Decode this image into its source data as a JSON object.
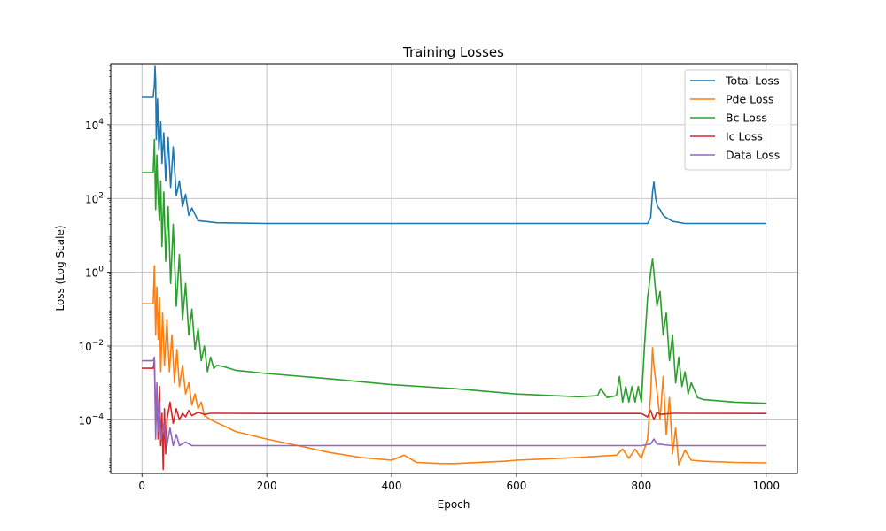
{
  "chart_data": {
    "type": "line",
    "title": "Training Losses",
    "xlabel": "Epoch",
    "ylabel": "Loss (Log Scale)",
    "xlim": [
      -50,
      1050
    ],
    "ylim": [
      3.5e-06,
      450000
    ],
    "yscale": "log",
    "grid": true,
    "legend_position": "top-right",
    "x_ticks": [
      0,
      200,
      400,
      600,
      800,
      1000
    ],
    "y_ticks": [
      {
        "value": 0.0001,
        "base": "10",
        "exp": "−4"
      },
      {
        "value": 0.01,
        "base": "10",
        "exp": "−2"
      },
      {
        "value": 1,
        "base": "10",
        "exp": "0"
      },
      {
        "value": 100,
        "base": "10",
        "exp": "2"
      },
      {
        "value": 10000,
        "base": "10",
        "exp": "4"
      }
    ],
    "series": [
      {
        "name": "Total Loss",
        "color": "#1f77b4",
        "points": [
          [
            0,
            55000
          ],
          [
            18,
            55000
          ],
          [
            20,
            120000
          ],
          [
            21,
            380000
          ],
          [
            22,
            150000
          ],
          [
            23,
            4000
          ],
          [
            25,
            50000
          ],
          [
            27,
            2000
          ],
          [
            30,
            12000
          ],
          [
            32,
            900
          ],
          [
            35,
            6000
          ],
          [
            38,
            300
          ],
          [
            42,
            4500
          ],
          [
            46,
            200
          ],
          [
            50,
            2500
          ],
          [
            55,
            120
          ],
          [
            60,
            300
          ],
          [
            65,
            60
          ],
          [
            70,
            130
          ],
          [
            75,
            35
          ],
          [
            80,
            55
          ],
          [
            90,
            25
          ],
          [
            100,
            24
          ],
          [
            120,
            22
          ],
          [
            200,
            21
          ],
          [
            400,
            21
          ],
          [
            600,
            21
          ],
          [
            800,
            21
          ],
          [
            810,
            21
          ],
          [
            815,
            30
          ],
          [
            818,
            150
          ],
          [
            820,
            280
          ],
          [
            823,
            100
          ],
          [
            826,
            60
          ],
          [
            830,
            50
          ],
          [
            835,
            35
          ],
          [
            840,
            30
          ],
          [
            850,
            24
          ],
          [
            870,
            21
          ],
          [
            1000,
            21
          ]
        ]
      },
      {
        "name": "Pde Loss",
        "color": "#ff7f0e",
        "points": [
          [
            0,
            0.14
          ],
          [
            18,
            0.14
          ],
          [
            20,
            1.5
          ],
          [
            22,
            0.02
          ],
          [
            24,
            0.4
          ],
          [
            26,
            0.015
          ],
          [
            28,
            0.2
          ],
          [
            30,
            0.002
          ],
          [
            33,
            0.08
          ],
          [
            36,
            0.003
          ],
          [
            40,
            0.05
          ],
          [
            44,
            0.002
          ],
          [
            48,
            0.02
          ],
          [
            52,
            0.001
          ],
          [
            56,
            0.008
          ],
          [
            60,
            0.0008
          ],
          [
            65,
            0.003
          ],
          [
            70,
            0.0005
          ],
          [
            75,
            0.001
          ],
          [
            80,
            0.00025
          ],
          [
            85,
            0.0005
          ],
          [
            90,
            0.0002
          ],
          [
            95,
            0.0003
          ],
          [
            100,
            0.00013
          ],
          [
            110,
            0.0001
          ],
          [
            130,
            7e-05
          ],
          [
            150,
            4.8e-05
          ],
          [
            200,
            3e-05
          ],
          [
            250,
            2e-05
          ],
          [
            300,
            1.3e-05
          ],
          [
            350,
            9.5e-06
          ],
          [
            400,
            8e-06
          ],
          [
            420,
            1.1e-05
          ],
          [
            440,
            7e-06
          ],
          [
            480,
            6.5e-06
          ],
          [
            500,
            6.5e-06
          ],
          [
            580,
            7.5e-06
          ],
          [
            600,
            8e-06
          ],
          [
            700,
            9.5e-06
          ],
          [
            760,
            1.1e-05
          ],
          [
            770,
            1.6e-05
          ],
          [
            780,
            9e-06
          ],
          [
            790,
            1.6e-05
          ],
          [
            800,
            9e-06
          ],
          [
            810,
            3e-05
          ],
          [
            815,
            0.0005
          ],
          [
            818,
            0.009
          ],
          [
            820,
            0.003
          ],
          [
            825,
            0.0006
          ],
          [
            830,
            0.0001
          ],
          [
            835,
            0.0015
          ],
          [
            840,
            4e-05
          ],
          [
            845,
            0.0004
          ],
          [
            850,
            1.2e-05
          ],
          [
            855,
            6e-05
          ],
          [
            860,
            6e-06
          ],
          [
            870,
            1.5e-05
          ],
          [
            880,
            8e-06
          ],
          [
            900,
            7.5e-06
          ],
          [
            950,
            7e-06
          ],
          [
            1000,
            6.8e-06
          ]
        ]
      },
      {
        "name": "Bc Loss",
        "color": "#2ca02c",
        "points": [
          [
            0,
            500
          ],
          [
            18,
            500
          ],
          [
            20,
            4000
          ],
          [
            22,
            50
          ],
          [
            24,
            1500
          ],
          [
            26,
            100
          ],
          [
            28,
            25
          ],
          [
            30,
            300
          ],
          [
            32,
            5
          ],
          [
            35,
            150
          ],
          [
            38,
            2
          ],
          [
            42,
            60
          ],
          [
            46,
            0.5
          ],
          [
            50,
            20
          ],
          [
            55,
            0.12
          ],
          [
            60,
            3
          ],
          [
            65,
            0.05
          ],
          [
            70,
            0.5
          ],
          [
            75,
            0.02
          ],
          [
            80,
            0.1
          ],
          [
            85,
            0.008
          ],
          [
            90,
            0.03
          ],
          [
            95,
            0.004
          ],
          [
            100,
            0.01
          ],
          [
            105,
            0.002
          ],
          [
            110,
            0.005
          ],
          [
            115,
            0.0025
          ],
          [
            120,
            0.003
          ],
          [
            130,
            0.0028
          ],
          [
            150,
            0.0022
          ],
          [
            200,
            0.0018
          ],
          [
            300,
            0.0013
          ],
          [
            400,
            0.0009
          ],
          [
            500,
            0.0007
          ],
          [
            600,
            0.0005
          ],
          [
            700,
            0.00042
          ],
          [
            730,
            0.00045
          ],
          [
            735,
            0.0007
          ],
          [
            745,
            0.0004
          ],
          [
            760,
            0.00045
          ],
          [
            765,
            0.0015
          ],
          [
            770,
            0.0003
          ],
          [
            775,
            0.0008
          ],
          [
            780,
            0.0003
          ],
          [
            785,
            0.0008
          ],
          [
            790,
            0.0003
          ],
          [
            795,
            0.0008
          ],
          [
            800,
            0.0003
          ],
          [
            805,
            0.01
          ],
          [
            810,
            0.2
          ],
          [
            815,
            1.0
          ],
          [
            818,
            2.3
          ],
          [
            820,
            1.0
          ],
          [
            825,
            0.12
          ],
          [
            830,
            0.3
          ],
          [
            835,
            0.02
          ],
          [
            840,
            0.08
          ],
          [
            845,
            0.004
          ],
          [
            850,
            0.02
          ],
          [
            855,
            0.001
          ],
          [
            860,
            0.005
          ],
          [
            865,
            0.0008
          ],
          [
            870,
            0.002
          ],
          [
            875,
            0.0005
          ],
          [
            880,
            0.001
          ],
          [
            890,
            0.0004
          ],
          [
            900,
            0.00035
          ],
          [
            950,
            0.0003
          ],
          [
            1000,
            0.00028
          ]
        ]
      },
      {
        "name": "Ic Loss",
        "color": "#d62728",
        "points": [
          [
            0,
            0.0025
          ],
          [
            18,
            0.0025
          ],
          [
            20,
            0.004
          ],
          [
            22,
            0.0001
          ],
          [
            24,
            0.0005
          ],
          [
            26,
            3e-05
          ],
          [
            28,
            0.0008
          ],
          [
            30,
            2e-05
          ],
          [
            32,
            0.00015
          ],
          [
            34,
            4.5e-06
          ],
          [
            36,
            0.0002
          ],
          [
            38,
            1.2e-05
          ],
          [
            40,
            0.0001
          ],
          [
            45,
            0.0003
          ],
          [
            50,
            8e-05
          ],
          [
            55,
            0.0002
          ],
          [
            60,
            0.0001
          ],
          [
            65,
            0.00015
          ],
          [
            70,
            0.00012
          ],
          [
            75,
            0.00018
          ],
          [
            80,
            0.00013
          ],
          [
            90,
            0.00016
          ],
          [
            100,
            0.00014
          ],
          [
            110,
            0.00015
          ],
          [
            130,
            0.00015
          ],
          [
            200,
            0.000148
          ],
          [
            400,
            0.000148
          ],
          [
            600,
            0.000148
          ],
          [
            800,
            0.000148
          ],
          [
            810,
            0.00012
          ],
          [
            815,
            0.00018
          ],
          [
            820,
            0.0001
          ],
          [
            825,
            0.00016
          ],
          [
            830,
            0.00014
          ],
          [
            850,
            0.00015
          ],
          [
            1000,
            0.000148
          ]
        ]
      },
      {
        "name": "Data Loss",
        "color": "#9467bd",
        "points": [
          [
            0,
            0.004
          ],
          [
            18,
            0.004
          ],
          [
            20,
            0.005
          ],
          [
            22,
            3e-05
          ],
          [
            24,
            0.001
          ],
          [
            26,
            5e-05
          ],
          [
            28,
            0.0003
          ],
          [
            30,
            3e-05
          ],
          [
            35,
            8e-05
          ],
          [
            40,
            2e-05
          ],
          [
            45,
            6e-05
          ],
          [
            50,
            2e-05
          ],
          [
            55,
            4e-05
          ],
          [
            60,
            2e-05
          ],
          [
            70,
            2.5e-05
          ],
          [
            80,
            2e-05
          ],
          [
            100,
            2e-05
          ],
          [
            200,
            2e-05
          ],
          [
            400,
            2e-05
          ],
          [
            600,
            2e-05
          ],
          [
            800,
            2e-05
          ],
          [
            815,
            2.2e-05
          ],
          [
            820,
            3e-05
          ],
          [
            825,
            2.2e-05
          ],
          [
            850,
            2e-05
          ],
          [
            1000,
            2e-05
          ]
        ]
      }
    ]
  }
}
